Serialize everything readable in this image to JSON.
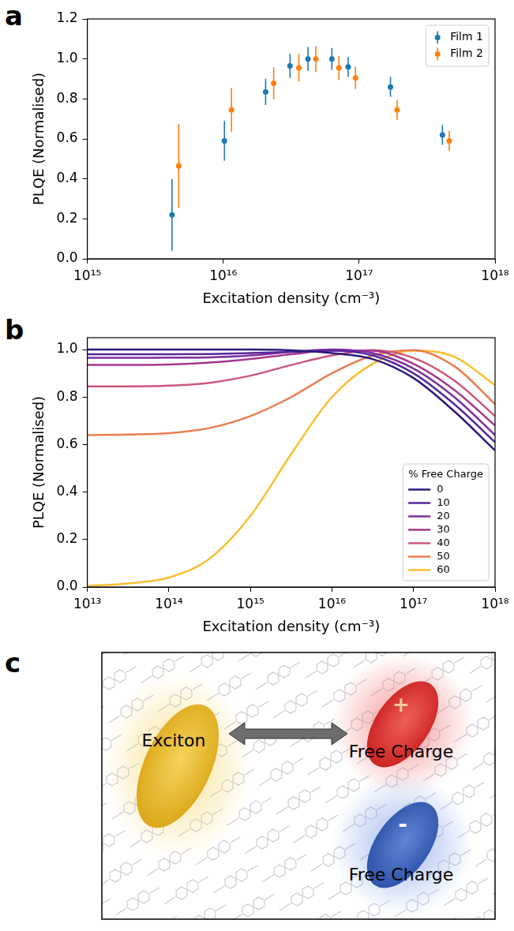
{
  "chart_data": [
    {
      "type": "scatter",
      "panel_label": "a",
      "x_label": "Excitation density (cm⁻³)",
      "y_label": "PLQE (Normalised)",
      "log": "x",
      "grid": false,
      "legend": "upper right",
      "xlim": [
        1000000000000000.0,
        1e+18
      ],
      "xticks": [
        {
          "value": 1000000000000000.0,
          "label": "10¹⁵"
        },
        {
          "value": 1e+16,
          "label": "10¹⁶"
        },
        {
          "value": 1e+17,
          "label": "10¹⁷"
        },
        {
          "value": 1e+18,
          "label": "10¹⁸"
        }
      ],
      "ylim": [
        0,
        1.2
      ],
      "yticks": [
        {
          "value": 0,
          "label": "0.0"
        },
        0.2,
        0.4,
        0.6,
        0.8,
        {
          "value": 1,
          "label": "1.0"
        },
        1.2
      ],
      "series": [
        {
          "name": "Film 1",
          "color": "#1f77b4",
          "marker": "circle",
          "x": [
            4200000000000000.0,
            1.02e+16,
            2.05e+16,
            3.1e+16,
            4.2e+16,
            6.3e+16,
            8.3e+16,
            1.7e+17,
            4.1e+17
          ],
          "values": [
            0.22,
            0.59,
            0.835,
            0.965,
            1.0,
            1.0,
            0.96,
            0.86,
            0.62
          ],
          "errors": [
            0.18,
            0.1,
            0.065,
            0.06,
            0.06,
            0.055,
            0.05,
            0.05,
            0.05
          ]
        },
        {
          "name": "Film 2",
          "color": "#ff7f0e",
          "marker": "circle",
          "x": [
            4700000000000000.0,
            1.15e+16,
            2.35e+16,
            3.6e+16,
            4.8e+16,
            7.1e+16,
            9.4e+16,
            1.9e+17,
            4.6e+17
          ],
          "values": [
            0.465,
            0.745,
            0.878,
            0.955,
            1.0,
            0.955,
            0.905,
            0.745,
            0.59
          ],
          "errors": [
            0.21,
            0.11,
            0.08,
            0.07,
            0.065,
            0.06,
            0.055,
            0.05,
            0.05
          ]
        }
      ]
    },
    {
      "type": "line",
      "panel_label": "b",
      "x_label": "Excitation density (cm⁻³)",
      "y_label": "PLQE (Normalised)",
      "log": "x",
      "grid": false,
      "legend": "lower right",
      "legend_title": "% Free Charge",
      "xlim": [
        10000000000000.0,
        1e+18
      ],
      "xticks": [
        {
          "value": 10000000000000.0,
          "label": "10¹³"
        },
        {
          "value": 100000000000000.0,
          "label": "10¹⁴"
        },
        {
          "value": 1000000000000000.0,
          "label": "10¹⁵"
        },
        {
          "value": 1e+16,
          "label": "10¹⁶"
        },
        {
          "value": 1e+17,
          "label": "10¹⁷"
        },
        {
          "value": 1e+18,
          "label": "10¹⁸"
        }
      ],
      "ylim": [
        0,
        1.05
      ],
      "yticks": [
        {
          "value": 0,
          "label": "0.0"
        },
        0.2,
        0.4,
        0.6,
        0.8,
        {
          "value": 1,
          "label": "1.0"
        }
      ],
      "x": [
        10000000000000.0,
        31600000000000.0,
        100000000000000.0,
        316000000000000.0,
        1000000000000000.0,
        3160000000000000.0,
        1e+16,
        3.16e+16,
        1e+17,
        3.16e+17,
        1e+18
      ],
      "series": [
        {
          "name": "0",
          "color": "#2b1b7d",
          "line_style": "solid",
          "values": [
            1.0,
            1.0,
            1.0,
            1.0,
            1.0,
            0.997,
            0.985,
            0.96,
            0.88,
            0.74,
            0.575
          ]
        },
        {
          "name": "10",
          "color": "#55289b",
          "line_style": "solid",
          "values": [
            0.98,
            0.98,
            0.98,
            0.981,
            0.985,
            0.99,
            0.995,
            0.975,
            0.9,
            0.77,
            0.61
          ]
        },
        {
          "name": "20",
          "color": "#7e2e9e",
          "line_style": "solid",
          "values": [
            0.965,
            0.965,
            0.966,
            0.967,
            0.975,
            0.99,
            1.0,
            0.985,
            0.92,
            0.8,
            0.64
          ]
        },
        {
          "name": "30",
          "color": "#a6368f",
          "line_style": "solid",
          "values": [
            0.935,
            0.935,
            0.937,
            0.945,
            0.96,
            0.98,
            0.997,
            0.995,
            0.94,
            0.83,
            0.68
          ]
        },
        {
          "name": "40",
          "color": "#cd5677",
          "line_style": "solid",
          "values": [
            0.845,
            0.845,
            0.848,
            0.86,
            0.89,
            0.935,
            0.975,
            0.998,
            0.965,
            0.87,
            0.72
          ]
        },
        {
          "name": "50",
          "color": "#ec7c50",
          "line_style": "solid",
          "values": [
            0.64,
            0.642,
            0.648,
            0.67,
            0.72,
            0.8,
            0.9,
            0.975,
            0.998,
            0.93,
            0.77
          ]
        },
        {
          "name": "60",
          "color": "#fbbe30",
          "line_style": "solid",
          "values": [
            0.005,
            0.015,
            0.04,
            0.12,
            0.3,
            0.56,
            0.8,
            0.94,
            0.995,
            0.97,
            0.85
          ]
        }
      ]
    }
  ],
  "diagram": {
    "panel_label": "c",
    "nodes": [
      {
        "label": "Exciton"
      },
      {
        "label": "Free Charge",
        "sign": "+"
      },
      {
        "label": "Free Charge",
        "sign": "-"
      }
    ]
  }
}
